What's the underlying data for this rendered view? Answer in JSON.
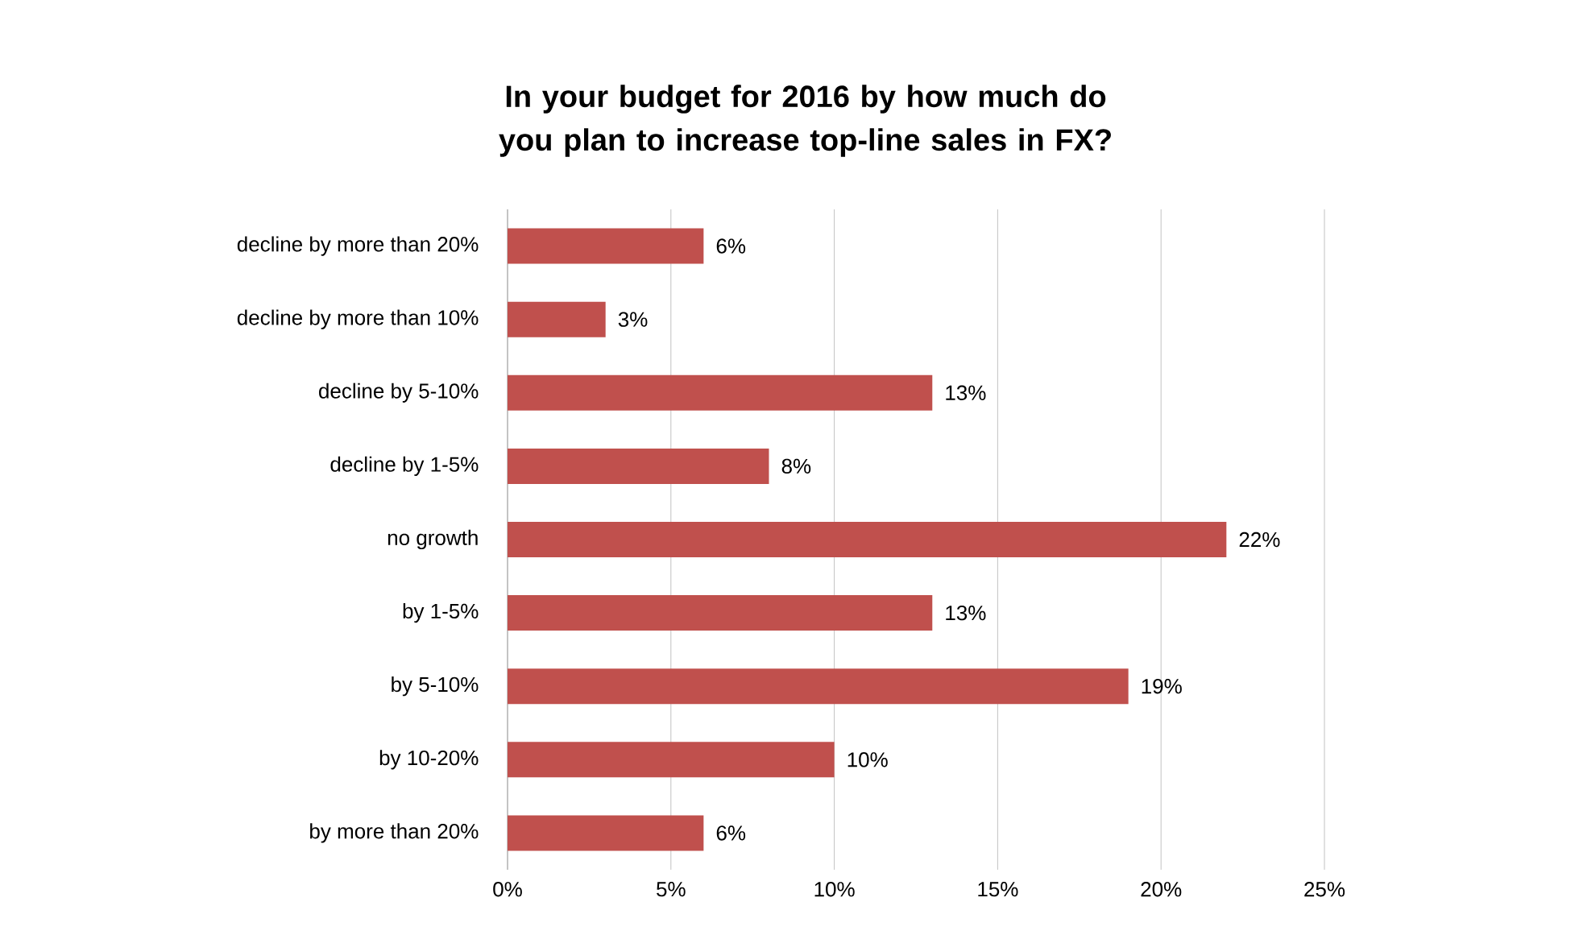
{
  "chart_data": {
    "type": "bar",
    "orientation": "horizontal",
    "title": "In your budget for 2016 by how much do you plan to increase top-line sales in FX?",
    "categories": [
      "decline by more than 20%",
      "decline by more than 10%",
      "decline by 5-10%",
      "decline by 1-5%",
      "no growth",
      "by 1-5%",
      "by 5-10%",
      "by 10-20%",
      "by more than 20%"
    ],
    "values": [
      6,
      3,
      13,
      8,
      22,
      13,
      19,
      10,
      6
    ],
    "value_labels": [
      "6%",
      "3%",
      "13%",
      "8%",
      "22%",
      "13%",
      "19%",
      "10%",
      "6%"
    ],
    "color": "#c0504d",
    "xlim": [
      0,
      25
    ],
    "xticks": [
      {
        "value": 0,
        "label": "0%"
      },
      {
        "value": 5,
        "label": "5%"
      },
      {
        "value": 10,
        "label": "10%"
      },
      {
        "value": 15,
        "label": "15%"
      },
      {
        "value": 20,
        "label": "20%"
      },
      {
        "value": 25,
        "label": "25%"
      }
    ],
    "grid": "x"
  }
}
